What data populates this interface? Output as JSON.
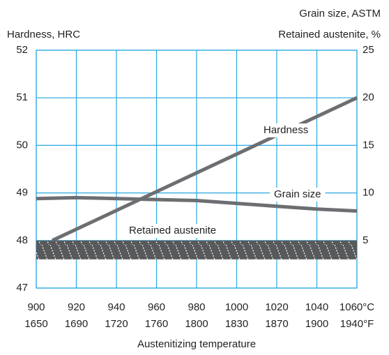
{
  "chart_data": {
    "type": "line",
    "ylabel": "Hardness, HRC",
    "y2label": "Grain size, ASTM",
    "y2label_2": "Retained austenite,  %",
    "xlabel": "Austenitizing temperature",
    "xlim": [
      900,
      1060
    ],
    "xticks": [
      900,
      920,
      940,
      960,
      980,
      1000,
      1020,
      1040,
      {
        "value": 1060,
        "label": "1060°C"
      }
    ],
    "x2tick_labels": [
      1650,
      1690,
      1720,
      1760,
      1800,
      1830,
      1870,
      1900,
      {
        "value": 1940,
        "label": "1940°F"
      }
    ],
    "ylim": [
      47,
      52
    ],
    "yticks": [
      47,
      48,
      49,
      50,
      51,
      52
    ],
    "y2lim": [
      0,
      25
    ],
    "y2ticks": [
      5,
      10,
      15,
      20,
      25
    ],
    "grid": true,
    "series": [
      {
        "name": "Hardness",
        "color": "#6d6e71",
        "x": [
          908,
          1060
        ],
        "values": [
          48.0,
          51.0
        ]
      },
      {
        "name": "Grain size",
        "color": "#6d6e71",
        "axis": "y2",
        "x": [
          900,
          920,
          960,
          980,
          1000,
          1020,
          1040,
          1060
        ],
        "values": [
          9.4,
          9.5,
          9.3,
          9.2,
          8.9,
          8.6,
          8.3,
          8.1
        ]
      },
      {
        "name": "Retained austenite",
        "color": "#58595b",
        "axis": "y2",
        "x": [
          900,
          1060
        ],
        "values": [
          4,
          4
        ]
      }
    ]
  }
}
